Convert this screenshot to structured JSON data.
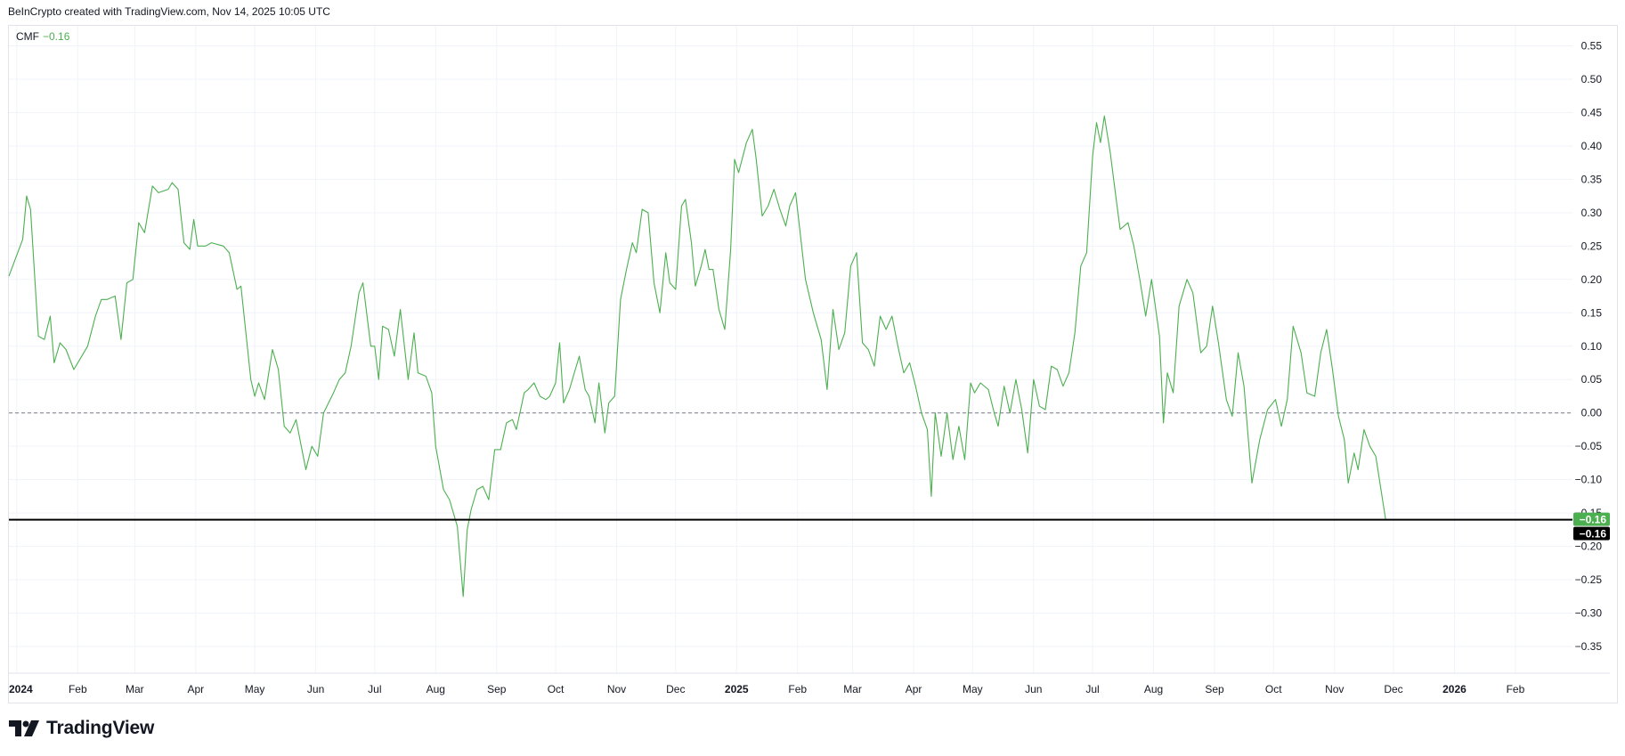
{
  "header": {
    "attribution": "BeInCrypto created with TradingView.com, Nov 14, 2025 10:05 UTC"
  },
  "legend": {
    "name": "CMF",
    "value": "−0.16"
  },
  "brand": {
    "name": "TradingView",
    "icon": "tradingview-logo-icon"
  },
  "colors": {
    "line": "#4caf50",
    "grid": "#f0f3fa",
    "axis_text": "#131722",
    "last_bg": "#4caf50",
    "crosshair_bg": "#000000"
  },
  "chart_data": {
    "type": "line",
    "title": "CMF",
    "xlabel": "",
    "ylabel": "",
    "ylim": [
      -0.39,
      0.58
    ],
    "y_ticks": [
      0.55,
      0.5,
      0.45,
      0.4,
      0.35,
      0.3,
      0.25,
      0.2,
      0.15,
      0.1,
      0.05,
      0.0,
      -0.05,
      -0.1,
      -0.15,
      -0.2,
      -0.25,
      -0.3,
      -0.35
    ],
    "y_tick_labels": [
      "0.55",
      "0.50",
      "0.45",
      "0.40",
      "0.35",
      "0.30",
      "0.25",
      "0.20",
      "0.15",
      "0.10",
      "0.05",
      "0.00",
      "−0.05",
      "−0.10",
      "−0.15",
      "−0.20",
      "−0.25",
      "−0.30",
      "−0.35"
    ],
    "x_range": [
      "2023-12-28",
      "2026-03-02"
    ],
    "x_ticks": [
      {
        "date": "2024-01-01",
        "label": "2024",
        "bold": true
      },
      {
        "date": "2024-02-01",
        "label": "Feb"
      },
      {
        "date": "2024-03-01",
        "label": "Mar"
      },
      {
        "date": "2024-04-01",
        "label": "Apr"
      },
      {
        "date": "2024-05-01",
        "label": "May"
      },
      {
        "date": "2024-06-01",
        "label": "Jun"
      },
      {
        "date": "2024-07-01",
        "label": "Jul"
      },
      {
        "date": "2024-08-01",
        "label": "Aug"
      },
      {
        "date": "2024-09-01",
        "label": "Sep"
      },
      {
        "date": "2024-10-01",
        "label": "Oct"
      },
      {
        "date": "2024-11-01",
        "label": "Nov"
      },
      {
        "date": "2024-12-01",
        "label": "Dec"
      },
      {
        "date": "2025-01-01",
        "label": "2025",
        "bold": true
      },
      {
        "date": "2025-02-01",
        "label": "Feb"
      },
      {
        "date": "2025-03-01",
        "label": "Mar"
      },
      {
        "date": "2025-04-01",
        "label": "Apr"
      },
      {
        "date": "2025-05-01",
        "label": "May"
      },
      {
        "date": "2025-06-01",
        "label": "Jun"
      },
      {
        "date": "2025-07-01",
        "label": "Jul"
      },
      {
        "date": "2025-08-01",
        "label": "Aug"
      },
      {
        "date": "2025-09-01",
        "label": "Sep"
      },
      {
        "date": "2025-10-01",
        "label": "Oct"
      },
      {
        "date": "2025-11-01",
        "label": "Nov"
      },
      {
        "date": "2025-12-01",
        "label": "Dec"
      },
      {
        "date": "2026-01-01",
        "label": "2026",
        "bold": true
      },
      {
        "date": "2026-02-01",
        "label": "Feb"
      }
    ],
    "zero_line": 0.0,
    "current_value": -0.16,
    "current_label": "−0.16",
    "crosshair_label": "−0.16",
    "series": [
      {
        "values": [
          [
            "2023-12-28",
            0.205
          ],
          [
            "2024-01-04",
            0.26
          ],
          [
            "2024-01-06",
            0.325
          ],
          [
            "2024-01-08",
            0.305
          ],
          [
            "2024-01-12",
            0.115
          ],
          [
            "2024-01-15",
            0.11
          ],
          [
            "2024-01-18",
            0.145
          ],
          [
            "2024-01-20",
            0.075
          ],
          [
            "2024-01-23",
            0.105
          ],
          [
            "2024-01-26",
            0.095
          ],
          [
            "2024-01-30",
            0.065
          ],
          [
            "2024-02-06",
            0.1
          ],
          [
            "2024-02-10",
            0.145
          ],
          [
            "2024-02-13",
            0.17
          ],
          [
            "2024-02-16",
            0.17
          ],
          [
            "2024-02-20",
            0.175
          ],
          [
            "2024-02-23",
            0.11
          ],
          [
            "2024-02-26",
            0.195
          ],
          [
            "2024-02-29",
            0.2
          ],
          [
            "2024-03-03",
            0.285
          ],
          [
            "2024-03-06",
            0.27
          ],
          [
            "2024-03-10",
            0.34
          ],
          [
            "2024-03-13",
            0.33
          ],
          [
            "2024-03-18",
            0.335
          ],
          [
            "2024-03-20",
            0.345
          ],
          [
            "2024-03-23",
            0.335
          ],
          [
            "2024-03-26",
            0.255
          ],
          [
            "2024-03-29",
            0.245
          ],
          [
            "2024-03-31",
            0.29
          ],
          [
            "2024-04-02",
            0.25
          ],
          [
            "2024-04-06",
            0.25
          ],
          [
            "2024-04-09",
            0.255
          ],
          [
            "2024-04-15",
            0.25
          ],
          [
            "2024-04-18",
            0.24
          ],
          [
            "2024-04-22",
            0.185
          ],
          [
            "2024-04-24",
            0.19
          ],
          [
            "2024-04-29",
            0.05
          ],
          [
            "2024-05-01",
            0.025
          ],
          [
            "2024-05-03",
            0.045
          ],
          [
            "2024-05-06",
            0.02
          ],
          [
            "2024-05-10",
            0.095
          ],
          [
            "2024-05-13",
            0.065
          ],
          [
            "2024-05-16",
            -0.02
          ],
          [
            "2024-05-19",
            -0.03
          ],
          [
            "2024-05-22",
            -0.01
          ],
          [
            "2024-05-27",
            -0.085
          ],
          [
            "2024-05-30",
            -0.05
          ],
          [
            "2024-06-02",
            -0.065
          ],
          [
            "2024-06-05",
            0.0
          ],
          [
            "2024-06-10",
            0.03
          ],
          [
            "2024-06-13",
            0.05
          ],
          [
            "2024-06-16",
            0.06
          ],
          [
            "2024-06-19",
            0.1
          ],
          [
            "2024-06-23",
            0.18
          ],
          [
            "2024-06-25",
            0.195
          ],
          [
            "2024-06-29",
            0.1
          ],
          [
            "2024-07-01",
            0.1
          ],
          [
            "2024-07-03",
            0.05
          ],
          [
            "2024-07-05",
            0.13
          ],
          [
            "2024-07-08",
            0.125
          ],
          [
            "2024-07-11",
            0.085
          ],
          [
            "2024-07-14",
            0.155
          ],
          [
            "2024-07-18",
            0.05
          ],
          [
            "2024-07-21",
            0.12
          ],
          [
            "2024-07-23",
            0.06
          ],
          [
            "2024-07-27",
            0.055
          ],
          [
            "2024-07-30",
            0.03
          ],
          [
            "2024-08-01",
            -0.05
          ],
          [
            "2024-08-05",
            -0.115
          ],
          [
            "2024-08-08",
            -0.13
          ],
          [
            "2024-08-12",
            -0.17
          ],
          [
            "2024-08-15",
            -0.275
          ],
          [
            "2024-08-17",
            -0.175
          ],
          [
            "2024-08-19",
            -0.145
          ],
          [
            "2024-08-22",
            -0.115
          ],
          [
            "2024-08-25",
            -0.11
          ],
          [
            "2024-08-28",
            -0.13
          ],
          [
            "2024-08-31",
            -0.055
          ],
          [
            "2024-09-03",
            -0.055
          ],
          [
            "2024-09-06",
            -0.015
          ],
          [
            "2024-09-09",
            -0.01
          ],
          [
            "2024-09-11",
            -0.025
          ],
          [
            "2024-09-15",
            0.03
          ],
          [
            "2024-09-17",
            0.035
          ],
          [
            "2024-09-20",
            0.045
          ],
          [
            "2024-09-23",
            0.025
          ],
          [
            "2024-09-26",
            0.02
          ],
          [
            "2024-09-28",
            0.025
          ],
          [
            "2024-10-01",
            0.045
          ],
          [
            "2024-10-03",
            0.105
          ],
          [
            "2024-10-05",
            0.015
          ],
          [
            "2024-10-08",
            0.035
          ],
          [
            "2024-10-11",
            0.065
          ],
          [
            "2024-10-13",
            0.085
          ],
          [
            "2024-10-16",
            0.035
          ],
          [
            "2024-10-18",
            0.025
          ],
          [
            "2024-10-21",
            -0.015
          ],
          [
            "2024-10-23",
            0.045
          ],
          [
            "2024-10-26",
            -0.03
          ],
          [
            "2024-10-28",
            0.015
          ],
          [
            "2024-10-31",
            0.025
          ],
          [
            "2024-11-03",
            0.17
          ],
          [
            "2024-11-06",
            0.215
          ],
          [
            "2024-11-09",
            0.255
          ],
          [
            "2024-11-11",
            0.24
          ],
          [
            "2024-11-14",
            0.305
          ],
          [
            "2024-11-17",
            0.3
          ],
          [
            "2024-11-20",
            0.195
          ],
          [
            "2024-11-23",
            0.15
          ],
          [
            "2024-11-26",
            0.24
          ],
          [
            "2024-11-28",
            0.195
          ],
          [
            "2024-12-01",
            0.185
          ],
          [
            "2024-12-04",
            0.31
          ],
          [
            "2024-12-06",
            0.32
          ],
          [
            "2024-12-09",
            0.255
          ],
          [
            "2024-12-11",
            0.19
          ],
          [
            "2024-12-14",
            0.22
          ],
          [
            "2024-12-16",
            0.245
          ],
          [
            "2024-12-18",
            0.215
          ],
          [
            "2024-12-20",
            0.215
          ],
          [
            "2024-12-23",
            0.155
          ],
          [
            "2024-12-26",
            0.125
          ],
          [
            "2024-12-29",
            0.245
          ],
          [
            "2024-12-31",
            0.38
          ],
          [
            "2025-01-02",
            0.36
          ],
          [
            "2025-01-06",
            0.405
          ],
          [
            "2025-01-09",
            0.425
          ],
          [
            "2025-01-11",
            0.38
          ],
          [
            "2025-01-14",
            0.295
          ],
          [
            "2025-01-17",
            0.31
          ],
          [
            "2025-01-20",
            0.335
          ],
          [
            "2025-01-23",
            0.305
          ],
          [
            "2025-01-26",
            0.28
          ],
          [
            "2025-01-28",
            0.31
          ],
          [
            "2025-01-31",
            0.33
          ],
          [
            "2025-02-05",
            0.2
          ],
          [
            "2025-02-09",
            0.15
          ],
          [
            "2025-02-13",
            0.11
          ],
          [
            "2025-02-16",
            0.035
          ],
          [
            "2025-02-19",
            0.155
          ],
          [
            "2025-02-22",
            0.095
          ],
          [
            "2025-02-25",
            0.12
          ],
          [
            "2025-02-28",
            0.22
          ],
          [
            "2025-03-03",
            0.24
          ],
          [
            "2025-03-06",
            0.105
          ],
          [
            "2025-03-09",
            0.095
          ],
          [
            "2025-03-12",
            0.07
          ],
          [
            "2025-03-15",
            0.145
          ],
          [
            "2025-03-18",
            0.125
          ],
          [
            "2025-03-21",
            0.145
          ],
          [
            "2025-03-24",
            0.1
          ],
          [
            "2025-03-27",
            0.06
          ],
          [
            "2025-03-30",
            0.075
          ],
          [
            "2025-04-02",
            0.04
          ],
          [
            "2025-04-05",
            0.0
          ],
          [
            "2025-04-08",
            -0.025
          ],
          [
            "2025-04-10",
            -0.125
          ],
          [
            "2025-04-12",
            0.0
          ],
          [
            "2025-04-15",
            -0.065
          ],
          [
            "2025-04-18",
            0.0
          ],
          [
            "2025-04-21",
            -0.07
          ],
          [
            "2025-04-24",
            -0.02
          ],
          [
            "2025-04-27",
            -0.07
          ],
          [
            "2025-04-30",
            0.045
          ],
          [
            "2025-05-02",
            0.03
          ],
          [
            "2025-05-05",
            0.045
          ],
          [
            "2025-05-09",
            0.035
          ],
          [
            "2025-05-12",
            0.0
          ],
          [
            "2025-05-14",
            -0.02
          ],
          [
            "2025-05-17",
            0.04
          ],
          [
            "2025-05-20",
            0.0
          ],
          [
            "2025-05-23",
            0.05
          ],
          [
            "2025-05-26",
            0.005
          ],
          [
            "2025-05-29",
            -0.06
          ],
          [
            "2025-06-01",
            0.05
          ],
          [
            "2025-06-04",
            0.01
          ],
          [
            "2025-06-07",
            0.005
          ],
          [
            "2025-06-10",
            0.07
          ],
          [
            "2025-06-13",
            0.065
          ],
          [
            "2025-06-16",
            0.04
          ],
          [
            "2025-06-19",
            0.06
          ],
          [
            "2025-06-22",
            0.12
          ],
          [
            "2025-06-25",
            0.22
          ],
          [
            "2025-06-28",
            0.24
          ],
          [
            "2025-07-01",
            0.385
          ],
          [
            "2025-07-03",
            0.435
          ],
          [
            "2025-07-05",
            0.405
          ],
          [
            "2025-07-07",
            0.445
          ],
          [
            "2025-07-10",
            0.39
          ],
          [
            "2025-07-13",
            0.32
          ],
          [
            "2025-07-15",
            0.275
          ],
          [
            "2025-07-19",
            0.285
          ],
          [
            "2025-07-22",
            0.25
          ],
          [
            "2025-07-25",
            0.2
          ],
          [
            "2025-07-28",
            0.145
          ],
          [
            "2025-07-31",
            0.2
          ],
          [
            "2025-08-04",
            0.115
          ],
          [
            "2025-08-06",
            -0.015
          ],
          [
            "2025-08-08",
            0.06
          ],
          [
            "2025-08-11",
            0.03
          ],
          [
            "2025-08-14",
            0.16
          ],
          [
            "2025-08-18",
            0.2
          ],
          [
            "2025-08-21",
            0.18
          ],
          [
            "2025-08-25",
            0.09
          ],
          [
            "2025-08-28",
            0.1
          ],
          [
            "2025-08-31",
            0.16
          ],
          [
            "2025-09-03",
            0.105
          ],
          [
            "2025-09-07",
            0.02
          ],
          [
            "2025-09-10",
            -0.005
          ],
          [
            "2025-09-13",
            0.09
          ],
          [
            "2025-09-16",
            0.04
          ],
          [
            "2025-09-20",
            -0.105
          ],
          [
            "2025-09-24",
            -0.04
          ],
          [
            "2025-09-28",
            0.005
          ],
          [
            "2025-10-02",
            0.02
          ],
          [
            "2025-10-05",
            -0.02
          ],
          [
            "2025-10-08",
            0.02
          ],
          [
            "2025-10-11",
            0.13
          ],
          [
            "2025-10-15",
            0.09
          ],
          [
            "2025-10-18",
            0.03
          ],
          [
            "2025-10-22",
            0.025
          ],
          [
            "2025-10-25",
            0.09
          ],
          [
            "2025-10-28",
            0.125
          ],
          [
            "2025-10-31",
            0.065
          ],
          [
            "2025-11-03",
            -0.005
          ],
          [
            "2025-11-06",
            -0.04
          ],
          [
            "2025-11-08",
            -0.105
          ],
          [
            "2025-11-11",
            -0.06
          ],
          [
            "2025-11-13",
            -0.085
          ],
          [
            "2025-11-16",
            -0.025
          ],
          [
            "2025-11-19",
            -0.05
          ],
          [
            "2025-11-22",
            -0.065
          ],
          [
            "2025-11-27",
            -0.16
          ]
        ]
      }
    ]
  }
}
